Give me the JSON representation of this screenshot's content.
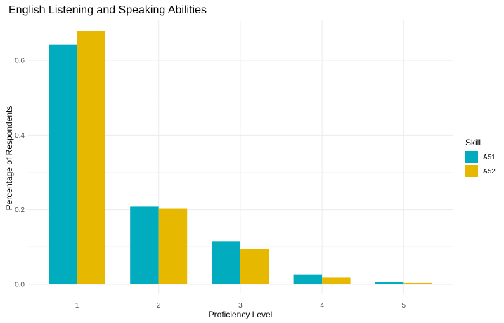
{
  "chart_data": {
    "type": "bar",
    "title": "English Listening and Speaking Abilities",
    "xlabel": "Proficiency Level",
    "ylabel": "Percentage of Respondents",
    "categories": [
      "1",
      "2",
      "3",
      "4",
      "5"
    ],
    "series": [
      {
        "name": "A51",
        "color": "#00ACBE",
        "values": [
          0.642,
          0.208,
          0.116,
          0.027,
          0.007
        ]
      },
      {
        "name": "A52",
        "color": "#E6B800",
        "values": [
          0.679,
          0.204,
          0.096,
          0.018,
          0.004
        ]
      }
    ],
    "ylim": [
      0,
      0.7
    ],
    "yticks": [
      "0.0",
      "0.2",
      "0.4",
      "0.6"
    ],
    "ytick_values": [
      0,
      0.2,
      0.4,
      0.6
    ],
    "legend": {
      "title": "Skill",
      "position": "right"
    },
    "grid": true
  }
}
